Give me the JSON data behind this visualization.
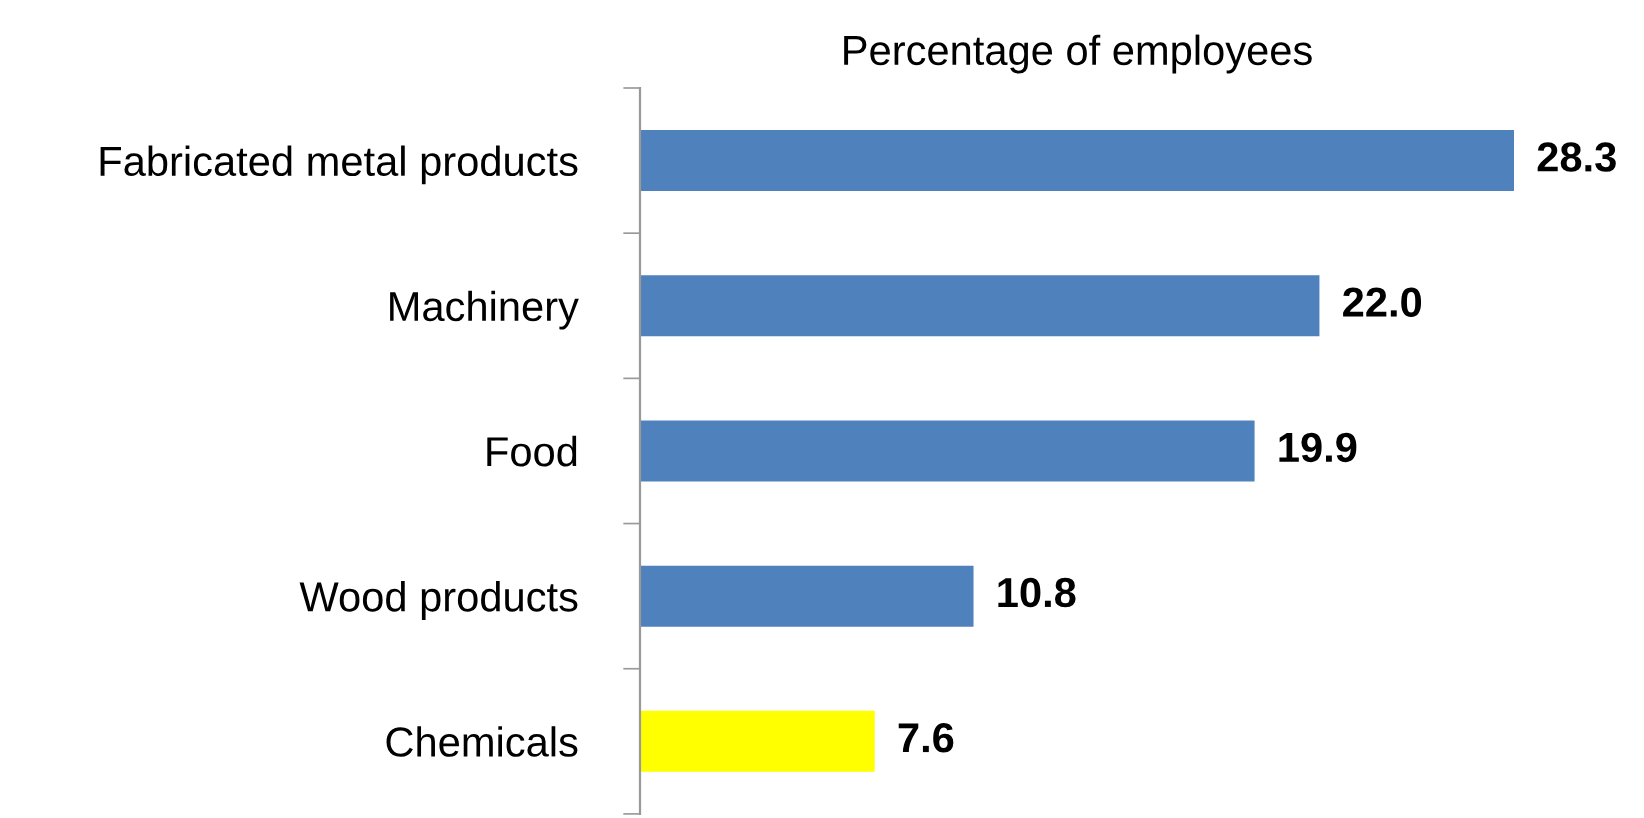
{
  "chart_data": {
    "type": "bar",
    "orientation": "horizontal",
    "title": "Percentage of employees",
    "categories": [
      "Fabricated metal products",
      "Machinery",
      "Food",
      "Wood products",
      "Chemicals"
    ],
    "values": [
      28.3,
      22.0,
      19.9,
      10.8,
      7.6
    ],
    "value_labels": [
      "28.3",
      "22.0",
      "19.9",
      "10.8",
      "7.6"
    ],
    "colors": [
      "#4f81bd",
      "#4f81bd",
      "#4f81bd",
      "#4f81bd",
      "#ffff00"
    ],
    "grid": false,
    "legend": false
  }
}
